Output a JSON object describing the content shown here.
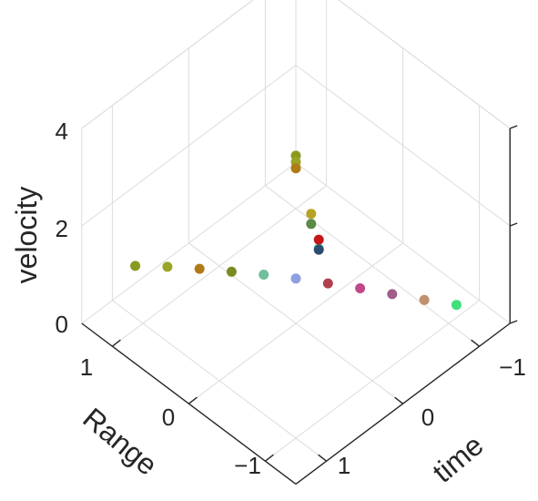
{
  "chart_data": {
    "type": "scatter",
    "dimensions": 3,
    "title": "",
    "xlabel": "time",
    "ylabel": "Range",
    "zlabel": "velocity",
    "xlim": [
      -1.4,
      1.4
    ],
    "ylim": [
      -1.4,
      1.4
    ],
    "zlim": [
      0,
      4
    ],
    "x_ticks": [
      "1",
      "0",
      "−1"
    ],
    "y_ticks": [
      "1",
      "0",
      "−1"
    ],
    "z_ticks": [
      "0",
      "2",
      "4"
    ],
    "grid": true,
    "marker": "filled circle",
    "palette": [
      "#8a9a1e",
      "#9aa524",
      "#b07a16",
      "#7a8c20",
      "#6fbf9a",
      "#8fa0e0",
      "#b04050",
      "#c04888",
      "#a25c8a",
      "#c09070",
      "#3fe07a",
      "#57e0b0",
      "#2b4d6f",
      "#c41818",
      "#5a8a46",
      "#b8a226"
    ],
    "series": [
      {
        "points": [
          [
            1.05,
            -1.05,
            1.18
          ],
          [
            0.84,
            -0.84,
            1.16
          ],
          [
            0.63,
            -0.63,
            1.12
          ],
          [
            0.42,
            -0.42,
            1.06
          ],
          [
            0.21,
            -0.21,
            1.0
          ],
          [
            0.0,
            0.0,
            0.92
          ],
          [
            -0.21,
            0.21,
            0.82
          ],
          [
            -0.42,
            0.42,
            0.72
          ],
          [
            -0.63,
            0.63,
            0.6
          ],
          [
            -0.84,
            0.84,
            0.48
          ],
          [
            -1.05,
            1.05,
            0.38
          ]
        ]
      },
      {
        "points": [
          [
            0.3,
            0.6,
            2.6
          ],
          [
            0.1,
            0.4,
            2.1
          ],
          [
            -0.2,
            0.1,
            1.6
          ],
          [
            -0.5,
            -0.3,
            1.1
          ],
          [
            -0.8,
            -0.6,
            0.6
          ]
        ]
      },
      {
        "points": [
          [
            -0.4,
            -0.4,
            2.5
          ],
          [
            -0.6,
            -0.6,
            1.9
          ],
          [
            -0.8,
            -0.8,
            1.3
          ]
        ]
      }
    ]
  }
}
